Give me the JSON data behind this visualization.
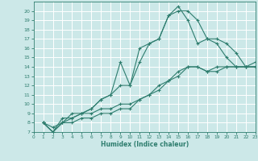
{
  "xlabel": "Humidex (Indice chaleur)",
  "bg_color": "#cce8e8",
  "line_color": "#2e7d6e",
  "grid_color": "#b8d8d8",
  "xlim": [
    0,
    23
  ],
  "ylim": [
    7,
    21
  ],
  "yticks": [
    7,
    8,
    9,
    10,
    11,
    12,
    13,
    14,
    15,
    16,
    17,
    18,
    19,
    20
  ],
  "xticks": [
    0,
    1,
    2,
    3,
    4,
    5,
    6,
    7,
    8,
    9,
    10,
    11,
    12,
    13,
    14,
    15,
    16,
    17,
    18,
    19,
    20,
    21,
    22,
    23
  ],
  "lines": [
    {
      "x": [
        1,
        2,
        3,
        4,
        5,
        6,
        7,
        8,
        9,
        10,
        11,
        12,
        13,
        14,
        15,
        16,
        17,
        18,
        19,
        20,
        21,
        22,
        23
      ],
      "y": [
        8,
        7,
        8,
        8,
        8.5,
        8.5,
        9,
        9,
        9.5,
        9.5,
        10.5,
        11,
        12,
        12.5,
        13.5,
        14,
        14,
        13.5,
        14,
        14,
        14,
        14,
        14
      ]
    },
    {
      "x": [
        1,
        2,
        3,
        4,
        5,
        6,
        7,
        8,
        9,
        10,
        11,
        12,
        13,
        14,
        15,
        16,
        17,
        18,
        19,
        20,
        21,
        22,
        23
      ],
      "y": [
        8,
        7.5,
        8,
        9,
        9,
        9,
        9.5,
        9.5,
        10,
        10,
        10.5,
        11,
        11.5,
        12.5,
        13,
        14,
        14,
        13.5,
        13.5,
        14,
        14,
        14,
        14.5
      ]
    },
    {
      "x": [
        1,
        2,
        3,
        4,
        5,
        6,
        7,
        8,
        9,
        10,
        11,
        12,
        13,
        14,
        15,
        16,
        17,
        18,
        19,
        20,
        21,
        22,
        23
      ],
      "y": [
        8,
        7,
        8,
        8.5,
        9,
        9.5,
        10.5,
        11,
        12,
        12,
        14.5,
        16.5,
        17,
        19.5,
        20,
        20,
        19,
        17,
        17,
        16.5,
        15.5,
        14,
        14
      ]
    },
    {
      "x": [
        1,
        2,
        3,
        4,
        5,
        6,
        7,
        8,
        9,
        10,
        11,
        12,
        13,
        14,
        15,
        16,
        17,
        18,
        19,
        20,
        21,
        22,
        23
      ],
      "y": [
        8,
        7,
        8.5,
        8.5,
        9,
        9.5,
        10.5,
        11,
        14.5,
        12,
        16,
        16.5,
        17,
        19.5,
        20.5,
        19,
        16.5,
        17,
        16.5,
        15,
        14,
        14,
        14
      ]
    }
  ]
}
